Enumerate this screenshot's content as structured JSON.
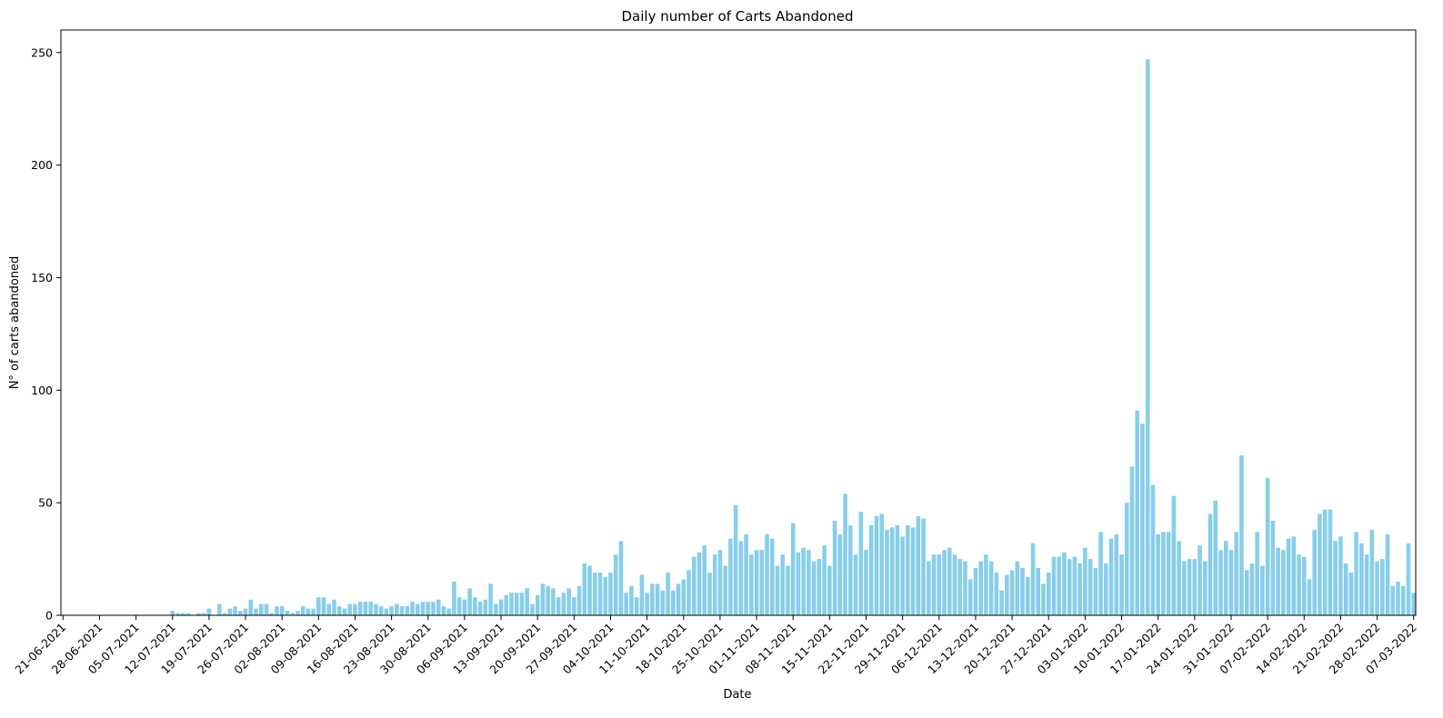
{
  "chart_data": {
    "type": "bar",
    "title": "Daily number of Carts Abandoned",
    "xlabel": "Date",
    "ylabel": "N° of carts abandoned",
    "ylim": [
      0,
      260
    ],
    "yticks": [
      0,
      50,
      100,
      150,
      200,
      250
    ],
    "color": "#87CEEB",
    "grid": false,
    "legend": "none",
    "xtick_labels": [
      "21-06-2021",
      "28-06-2021",
      "05-07-2021",
      "12-07-2021",
      "19-07-2021",
      "26-07-2021",
      "02-08-2021",
      "09-08-2021",
      "16-08-2021",
      "23-08-2021",
      "30-08-2021",
      "06-09-2021",
      "13-09-2021",
      "20-09-2021",
      "27-09-2021",
      "04-10-2021",
      "11-10-2021",
      "18-10-2021",
      "25-10-2021",
      "01-11-2021",
      "08-11-2021",
      "15-11-2021",
      "22-11-2021",
      "29-11-2021",
      "06-12-2021",
      "13-12-2021",
      "20-12-2021",
      "27-12-2021",
      "03-01-2022",
      "10-01-2022",
      "17-01-2022",
      "24-01-2022",
      "31-01-2022",
      "07-02-2022",
      "14-02-2022",
      "21-02-2022",
      "28-02-2022",
      "07-03-2022"
    ],
    "values": [
      0,
      0,
      0,
      0,
      0,
      0,
      0,
      0,
      0,
      0,
      0,
      0,
      0,
      0,
      0,
      0,
      0,
      0,
      0,
      0,
      0,
      2,
      1,
      1,
      1,
      0,
      1,
      1,
      3,
      0,
      5,
      1,
      3,
      4,
      2,
      3,
      7,
      3,
      5,
      5,
      1,
      4,
      4,
      2,
      1,
      2,
      4,
      3,
      3,
      8,
      8,
      5,
      7,
      4,
      3,
      5,
      5,
      6,
      6,
      6,
      5,
      4,
      3,
      4,
      5,
      4,
      4,
      6,
      5,
      6,
      6,
      6,
      7,
      4,
      3,
      15,
      8,
      7,
      12,
      8,
      6,
      7,
      14,
      5,
      7,
      9,
      10,
      10,
      10,
      12,
      5,
      9,
      14,
      13,
      12,
      8,
      10,
      12,
      8,
      13,
      23,
      22,
      19,
      19,
      17,
      19,
      27,
      33,
      10,
      13,
      8,
      18,
      10,
      14,
      14,
      11,
      19,
      11,
      14,
      16,
      20,
      26,
      28,
      31,
      19,
      27,
      29,
      22,
      34,
      49,
      33,
      36,
      27,
      29,
      29,
      36,
      34,
      22,
      27,
      22,
      41,
      28,
      30,
      29,
      24,
      25,
      31,
      22,
      42,
      36,
      54,
      40,
      27,
      46,
      29,
      40,
      44,
      45,
      38,
      39,
      40,
      35,
      40,
      39,
      44,
      43,
      24,
      27,
      27,
      29,
      30,
      27,
      25,
      24,
      16,
      21,
      24,
      27,
      24,
      19,
      11,
      18,
      20,
      24,
      21,
      17,
      32,
      21,
      14,
      19,
      26,
      26,
      28,
      25,
      26,
      23,
      30,
      25,
      21,
      37,
      23,
      34,
      36,
      27,
      50,
      66,
      91,
      85,
      247,
      58,
      36,
      37,
      37,
      53,
      33,
      24,
      25,
      25,
      31,
      24,
      45,
      51,
      29,
      33,
      29,
      37,
      71,
      20,
      23,
      37,
      22,
      61,
      42,
      30,
      29,
      34,
      35,
      27,
      26,
      16,
      38,
      45,
      47,
      47,
      33,
      35,
      23,
      19,
      37,
      32,
      27,
      38,
      24,
      25,
      36,
      13,
      15,
      13,
      32,
      10
    ]
  }
}
